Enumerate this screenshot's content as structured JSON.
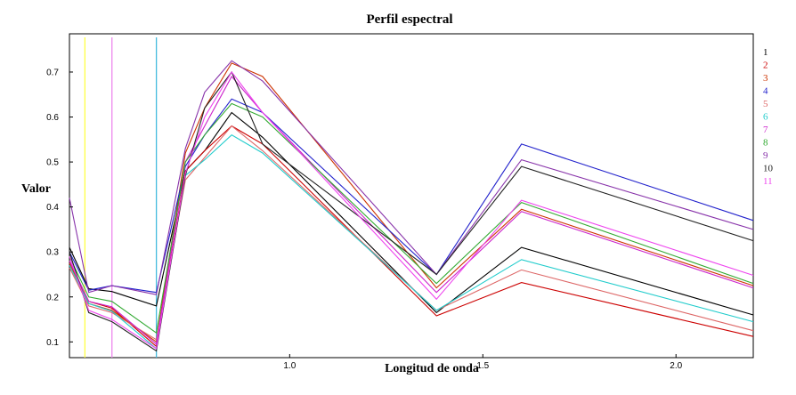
{
  "chart_data": {
    "type": "line",
    "title": "Perfil espectral",
    "xlabel": "Longitud de onda",
    "ylabel": "Valor",
    "xlim": [
      0.43,
      2.2
    ],
    "ylim": [
      0.065,
      0.785
    ],
    "x_ticks": [
      {
        "value": 1.0,
        "label": "1.0"
      },
      {
        "value": 1.5,
        "label": "1.5"
      },
      {
        "value": 2.0,
        "label": "2.0"
      }
    ],
    "y_ticks": [
      {
        "value": 0.1,
        "label": "0.1"
      },
      {
        "value": 0.2,
        "label": "0.2"
      },
      {
        "value": 0.3,
        "label": "0.3"
      },
      {
        "value": 0.4,
        "label": "0.4"
      },
      {
        "value": 0.5,
        "label": "0.5"
      },
      {
        "value": 0.6,
        "label": "0.6"
      },
      {
        "value": 0.7,
        "label": "0.7"
      }
    ],
    "grid": false,
    "legend_placement": "right",
    "vertical_markers": [
      {
        "x": 0.47,
        "color": "#ffff44"
      },
      {
        "x": 0.54,
        "color": "#ee88ee"
      },
      {
        "x": 0.655,
        "color": "#44bbdd"
      }
    ],
    "x": [
      0.43,
      0.48,
      0.54,
      0.655,
      0.73,
      0.78,
      0.85,
      0.93,
      1.38,
      1.6,
      2.2
    ],
    "series": [
      {
        "name": "1",
        "color": "#000000",
        "values": [
          0.31,
          0.218,
          0.212,
          0.18,
          0.48,
          0.525,
          0.61,
          0.555,
          0.165,
          0.31,
          0.16
        ]
      },
      {
        "name": "2",
        "color": "#cc0000",
        "values": [
          0.28,
          0.19,
          0.175,
          0.09,
          0.48,
          0.525,
          0.58,
          0.54,
          0.158,
          0.232,
          0.112
        ]
      },
      {
        "name": "3",
        "color": "#cc3300",
        "values": [
          0.275,
          0.185,
          0.17,
          0.1,
          0.52,
          0.62,
          0.72,
          0.69,
          0.22,
          0.395,
          0.225
        ]
      },
      {
        "name": "4",
        "color": "#2222cc",
        "values": [
          0.3,
          0.215,
          0.225,
          0.21,
          0.49,
          0.56,
          0.64,
          0.61,
          0.25,
          0.54,
          0.37
        ]
      },
      {
        "name": "5",
        "color": "#dd6666",
        "values": [
          0.265,
          0.18,
          0.165,
          0.105,
          0.46,
          0.51,
          0.58,
          0.525,
          0.17,
          0.26,
          0.125
        ]
      },
      {
        "name": "6",
        "color": "#22cccc",
        "values": [
          0.27,
          0.185,
          0.168,
          0.085,
          0.47,
          0.505,
          0.56,
          0.52,
          0.17,
          0.283,
          0.145
        ]
      },
      {
        "name": "7",
        "color": "#cc22cc",
        "values": [
          0.28,
          0.19,
          0.178,
          0.095,
          0.5,
          0.58,
          0.69,
          0.61,
          0.21,
          0.39,
          0.22
        ]
      },
      {
        "name": "8",
        "color": "#33aa33",
        "values": [
          0.29,
          0.2,
          0.19,
          0.12,
          0.5,
          0.56,
          0.63,
          0.6,
          0.23,
          0.41,
          0.23
        ]
      },
      {
        "name": "9",
        "color": "#8833aa",
        "values": [
          0.42,
          0.21,
          0.225,
          0.205,
          0.53,
          0.655,
          0.725,
          0.68,
          0.25,
          0.505,
          0.35
        ]
      },
      {
        "name": "10",
        "color": "#222222",
        "values": [
          0.3,
          0.165,
          0.145,
          0.08,
          0.47,
          0.62,
          0.7,
          0.54,
          0.25,
          0.49,
          0.325
        ]
      },
      {
        "name": "11",
        "color": "#ee44ee",
        "values": [
          0.29,
          0.17,
          0.15,
          0.085,
          0.475,
          0.6,
          0.7,
          0.61,
          0.195,
          0.415,
          0.248
        ]
      }
    ]
  }
}
